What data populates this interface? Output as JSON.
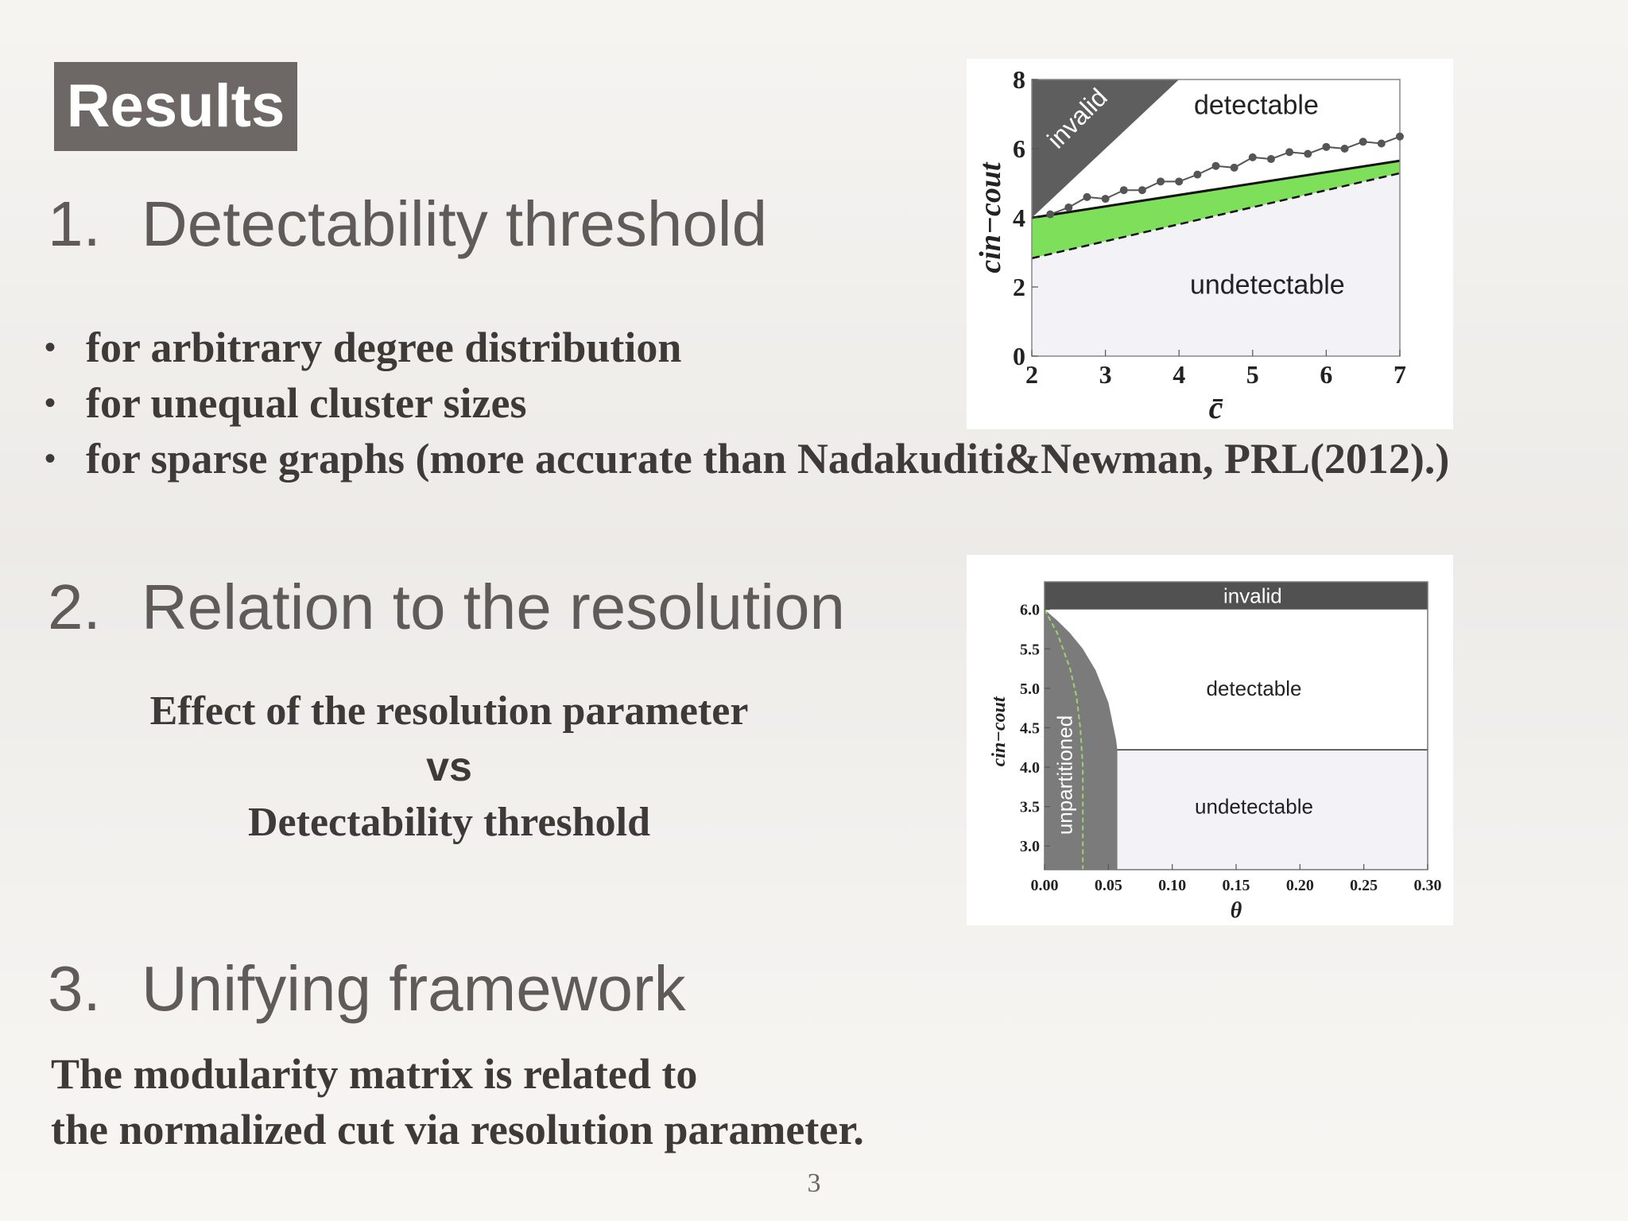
{
  "slide": {
    "badge": "Results",
    "page_number": "3"
  },
  "section1": {
    "number": "1.",
    "title": "Detectability threshold",
    "bullet_char": "•",
    "bullets": [
      "for arbitrary degree distribution",
      "for unequal cluster sizes",
      "for sparse graphs (more accurate than Nadakuditi&Newman, PRL(2012).)"
    ]
  },
  "section2": {
    "number": "2.",
    "title": "Relation to the resolution",
    "line1": "Effect of the resolution parameter",
    "line2": "vs",
    "line3": "Detectability threshold"
  },
  "section3": {
    "number": "3.",
    "title": "Unifying framework",
    "line1": "The modularity matrix is related to",
    "line2": "the normalized cut via resolution parameter."
  },
  "chart_data": [
    {
      "type": "area",
      "xlabel": "c̄",
      "ylabel": "cin−cout",
      "xlim": [
        2,
        7
      ],
      "ylim": [
        0,
        8
      ],
      "xticks": [
        "2",
        "3",
        "4",
        "5",
        "6",
        "7"
      ],
      "yticks": [
        "0",
        "2",
        "4",
        "6",
        "8"
      ],
      "region_labels": {
        "invalid": "invalid",
        "detectable": "detectable",
        "undetectable": "undetectable"
      },
      "invalid_boundary": {
        "x": [
          2,
          4
        ],
        "y": [
          4,
          8
        ]
      },
      "upper_threshold": {
        "x": [
          2,
          7
        ],
        "y": [
          4.0,
          5.65
        ]
      },
      "lower_threshold": {
        "x": [
          2,
          7
        ],
        "y": [
          2.83,
          5.29
        ]
      },
      "points": {
        "x": [
          2.25,
          2.5,
          2.75,
          3.0,
          3.25,
          3.5,
          3.75,
          4.0,
          4.25,
          4.5,
          4.75,
          5.0,
          5.25,
          5.5,
          5.75,
          6.0,
          6.25,
          6.5,
          6.75,
          7.0
        ],
        "y": [
          4.1,
          4.3,
          4.6,
          4.55,
          4.8,
          4.8,
          5.05,
          5.05,
          5.25,
          5.5,
          5.45,
          5.75,
          5.7,
          5.9,
          5.85,
          6.05,
          6.0,
          6.2,
          6.15,
          6.35
        ]
      },
      "colors": {
        "invalid": "#5e5e5e",
        "band": "#7ee05a",
        "undetectable": "#f3f2f7",
        "points": "#555555"
      }
    },
    {
      "type": "area",
      "xlabel": "θ",
      "ylabel": "cin−cout",
      "xlim": [
        0.0,
        0.3
      ],
      "ylim": [
        2.7,
        6.35
      ],
      "xticks": [
        "0.00",
        "0.05",
        "0.10",
        "0.15",
        "0.20",
        "0.25",
        "0.30"
      ],
      "yticks": [
        "3.0",
        "3.5",
        "4.0",
        "4.5",
        "5.0",
        "5.5",
        "6.0"
      ],
      "region_labels": {
        "invalid": "invalid",
        "detectable": "detectable",
        "undetectable": "undetectable",
        "unpartitioned": "unpartitioned"
      },
      "invalid_band": {
        "ymin": 6.0,
        "ymax": 6.35
      },
      "threshold": 4.22,
      "unpartitioned_boundary": {
        "x": [
          0.0,
          0.01,
          0.02,
          0.03,
          0.04,
          0.05,
          0.056,
          0.057,
          0.057
        ],
        "y": [
          6.0,
          5.86,
          5.7,
          5.5,
          5.23,
          4.82,
          4.35,
          4.22,
          2.7
        ]
      },
      "green_dashed": {
        "x": [
          0.0,
          0.01,
          0.02,
          0.025,
          0.028,
          0.03,
          0.03
        ],
        "y": [
          6.0,
          5.7,
          5.25,
          4.9,
          4.5,
          4.0,
          2.7
        ]
      },
      "colors": {
        "invalid": "#525152",
        "unpartitioned": "#7c7b7c",
        "undetectable": "#f3f2f7",
        "dashed": "#9bd26b"
      }
    }
  ]
}
